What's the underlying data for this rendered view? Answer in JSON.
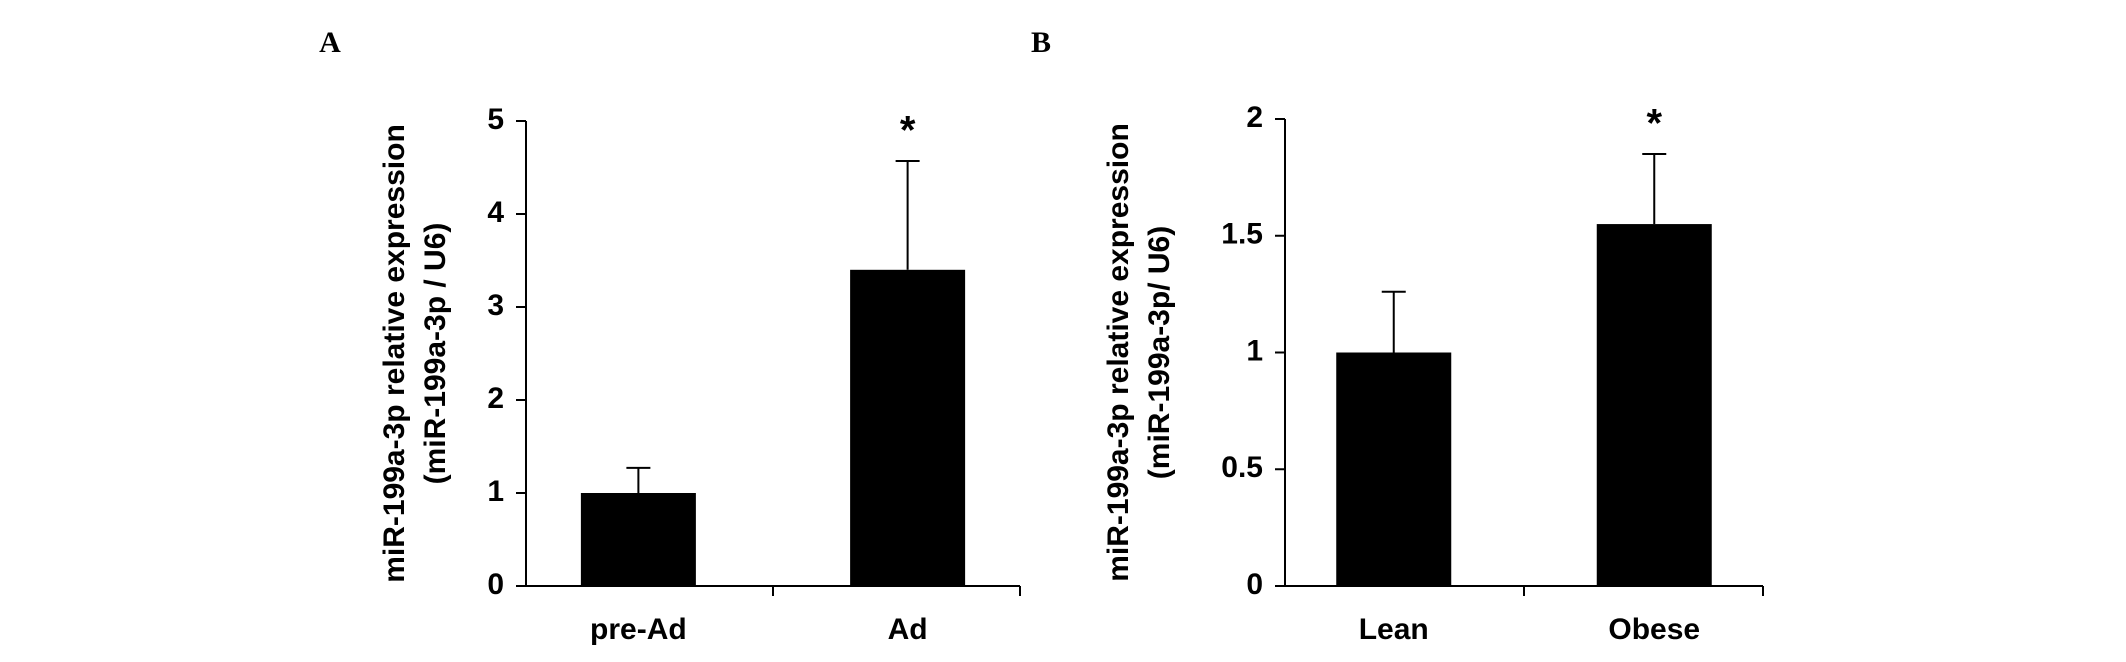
{
  "chart_data": [
    {
      "type": "bar",
      "panel": "A",
      "ylabel": [
        "miR-199a-3p relative expression",
        "(miR-199a-3p / U6)"
      ],
      "categories": [
        "pre-Ad",
        "Ad"
      ],
      "values": [
        1.0,
        3.4
      ],
      "errors": [
        0.27,
        1.17
      ],
      "significance": [
        null,
        "*"
      ],
      "color": "#000000",
      "ylim": [
        0,
        5
      ],
      "yticks": [
        0,
        1,
        2,
        3,
        4,
        5
      ],
      "grid": false
    },
    {
      "type": "bar",
      "panel": "B",
      "ylabel": [
        "miR-199a-3p relative expression",
        "(miR-199a-3p/ U6)"
      ],
      "categories": [
        "Lean",
        "Obese"
      ],
      "values": [
        1.0,
        1.55
      ],
      "errors": [
        0.26,
        0.3
      ],
      "significance": [
        null,
        "*"
      ],
      "color": "#000000",
      "ylim": [
        0,
        2
      ],
      "yticks": [
        0,
        0.5,
        1,
        1.5,
        2
      ],
      "grid": false
    }
  ]
}
